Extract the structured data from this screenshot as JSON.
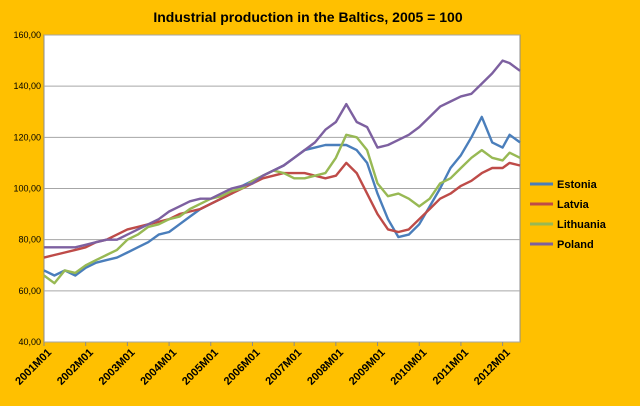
{
  "chart_data": {
    "type": "line",
    "title": "Industrial production in the Baltics, 2005 = 100",
    "ylim": [
      40,
      160
    ],
    "yticks": [
      40,
      60,
      80,
      100,
      120,
      140,
      160
    ],
    "ytick_labels": [
      "40,00",
      "60,00",
      "80,00",
      "100,00",
      "120,00",
      "140,00",
      "160,00"
    ],
    "xticks": [
      "2001M01",
      "2002M01",
      "2003M01",
      "2004M01",
      "2005M01",
      "2006M01",
      "2007M01",
      "2008M01",
      "2009M01",
      "2010M01",
      "2011M01",
      "2012M01"
    ],
    "x_start": "2001M01",
    "x_end": "2012M06",
    "grid": true,
    "legend_position": "right",
    "series": [
      {
        "name": "Estonia",
        "color": "#4A7EBB",
        "points": [
          [
            "2001M01",
            68
          ],
          [
            "2001M04",
            66
          ],
          [
            "2001M07",
            68
          ],
          [
            "2001M10",
            66
          ],
          [
            "2002M01",
            69
          ],
          [
            "2002M04",
            71
          ],
          [
            "2002M07",
            72
          ],
          [
            "2002M10",
            73
          ],
          [
            "2003M01",
            75
          ],
          [
            "2003M04",
            77
          ],
          [
            "2003M07",
            79
          ],
          [
            "2003M10",
            82
          ],
          [
            "2004M01",
            83
          ],
          [
            "2004M04",
            86
          ],
          [
            "2004M07",
            89
          ],
          [
            "2004M10",
            92
          ],
          [
            "2005M01",
            94
          ],
          [
            "2005M04",
            96
          ],
          [
            "2005M07",
            98
          ],
          [
            "2005M10",
            101
          ],
          [
            "2006M01",
            103
          ],
          [
            "2006M04",
            105
          ],
          [
            "2006M07",
            107
          ],
          [
            "2006M10",
            109
          ],
          [
            "2007M01",
            112
          ],
          [
            "2007M04",
            115
          ],
          [
            "2007M07",
            116
          ],
          [
            "2007M10",
            117
          ],
          [
            "2008M01",
            117
          ],
          [
            "2008M04",
            117
          ],
          [
            "2008M07",
            115
          ],
          [
            "2008M10",
            110
          ],
          [
            "2009M01",
            98
          ],
          [
            "2009M04",
            88
          ],
          [
            "2009M07",
            81
          ],
          [
            "2009M10",
            82
          ],
          [
            "2010M01",
            86
          ],
          [
            "2010M04",
            93
          ],
          [
            "2010M07",
            100
          ],
          [
            "2010M10",
            108
          ],
          [
            "2011M01",
            113
          ],
          [
            "2011M04",
            120
          ],
          [
            "2011M07",
            128
          ],
          [
            "2011M10",
            118
          ],
          [
            "2012M01",
            116
          ],
          [
            "2012M03",
            121
          ],
          [
            "2012M06",
            118
          ]
        ]
      },
      {
        "name": "Latvia",
        "color": "#BE4B48",
        "points": [
          [
            "2001M01",
            73
          ],
          [
            "2001M04",
            74
          ],
          [
            "2001M07",
            75
          ],
          [
            "2001M10",
            76
          ],
          [
            "2002M01",
            77
          ],
          [
            "2002M04",
            79
          ],
          [
            "2002M07",
            80
          ],
          [
            "2002M10",
            82
          ],
          [
            "2003M01",
            84
          ],
          [
            "2003M04",
            85
          ],
          [
            "2003M07",
            86
          ],
          [
            "2003M10",
            87
          ],
          [
            "2004M01",
            88
          ],
          [
            "2004M04",
            90
          ],
          [
            "2004M07",
            91
          ],
          [
            "2004M10",
            92
          ],
          [
            "2005M01",
            94
          ],
          [
            "2005M04",
            96
          ],
          [
            "2005M07",
            98
          ],
          [
            "2005M10",
            100
          ],
          [
            "2006M01",
            102
          ],
          [
            "2006M04",
            104
          ],
          [
            "2006M07",
            105
          ],
          [
            "2006M10",
            106
          ],
          [
            "2007M01",
            106
          ],
          [
            "2007M04",
            106
          ],
          [
            "2007M07",
            105
          ],
          [
            "2007M10",
            104
          ],
          [
            "2008M01",
            105
          ],
          [
            "2008M04",
            110
          ],
          [
            "2008M07",
            106
          ],
          [
            "2008M10",
            98
          ],
          [
            "2009M01",
            90
          ],
          [
            "2009M04",
            84
          ],
          [
            "2009M07",
            83
          ],
          [
            "2009M10",
            84
          ],
          [
            "2010M01",
            88
          ],
          [
            "2010M04",
            92
          ],
          [
            "2010M07",
            96
          ],
          [
            "2010M10",
            98
          ],
          [
            "2011M01",
            101
          ],
          [
            "2011M04",
            103
          ],
          [
            "2011M07",
            106
          ],
          [
            "2011M10",
            108
          ],
          [
            "2012M01",
            108
          ],
          [
            "2012M03",
            110
          ],
          [
            "2012M06",
            109
          ]
        ]
      },
      {
        "name": "Lithuania",
        "color": "#98B954",
        "points": [
          [
            "2001M01",
            66
          ],
          [
            "2001M04",
            63
          ],
          [
            "2001M07",
            68
          ],
          [
            "2001M10",
            67
          ],
          [
            "2002M01",
            70
          ],
          [
            "2002M04",
            72
          ],
          [
            "2002M07",
            74
          ],
          [
            "2002M10",
            76
          ],
          [
            "2003M01",
            80
          ],
          [
            "2003M04",
            82
          ],
          [
            "2003M07",
            85
          ],
          [
            "2003M10",
            86
          ],
          [
            "2004M01",
            88
          ],
          [
            "2004M04",
            89
          ],
          [
            "2004M07",
            92
          ],
          [
            "2004M10",
            94
          ],
          [
            "2005M01",
            96
          ],
          [
            "2005M04",
            97
          ],
          [
            "2005M07",
            99
          ],
          [
            "2005M10",
            100
          ],
          [
            "2006M01",
            103
          ],
          [
            "2006M04",
            105
          ],
          [
            "2006M07",
            107
          ],
          [
            "2006M10",
            106
          ],
          [
            "2007M01",
            104
          ],
          [
            "2007M04",
            104
          ],
          [
            "2007M07",
            105
          ],
          [
            "2007M10",
            106
          ],
          [
            "2008M01",
            112
          ],
          [
            "2008M04",
            121
          ],
          [
            "2008M07",
            120
          ],
          [
            "2008M10",
            115
          ],
          [
            "2009M01",
            102
          ],
          [
            "2009M04",
            97
          ],
          [
            "2009M07",
            98
          ],
          [
            "2009M10",
            96
          ],
          [
            "2010M01",
            93
          ],
          [
            "2010M04",
            96
          ],
          [
            "2010M07",
            102
          ],
          [
            "2010M10",
            104
          ],
          [
            "2011M01",
            108
          ],
          [
            "2011M04",
            112
          ],
          [
            "2011M07",
            115
          ],
          [
            "2011M10",
            112
          ],
          [
            "2012M01",
            111
          ],
          [
            "2012M03",
            114
          ],
          [
            "2012M06",
            112
          ]
        ]
      },
      {
        "name": "Poland",
        "color": "#7D60A0",
        "points": [
          [
            "2001M01",
            77
          ],
          [
            "2001M04",
            77
          ],
          [
            "2001M07",
            77
          ],
          [
            "2001M10",
            77
          ],
          [
            "2002M01",
            78
          ],
          [
            "2002M04",
            79
          ],
          [
            "2002M07",
            80
          ],
          [
            "2002M10",
            80
          ],
          [
            "2003M01",
            82
          ],
          [
            "2003M04",
            84
          ],
          [
            "2003M07",
            86
          ],
          [
            "2003M10",
            88
          ],
          [
            "2004M01",
            91
          ],
          [
            "2004M04",
            93
          ],
          [
            "2004M07",
            95
          ],
          [
            "2004M10",
            96
          ],
          [
            "2005M01",
            96
          ],
          [
            "2005M04",
            98
          ],
          [
            "2005M07",
            100
          ],
          [
            "2005M10",
            101
          ],
          [
            "2006M01",
            102
          ],
          [
            "2006M04",
            105
          ],
          [
            "2006M07",
            107
          ],
          [
            "2006M10",
            109
          ],
          [
            "2007M01",
            112
          ],
          [
            "2007M04",
            115
          ],
          [
            "2007M07",
            118
          ],
          [
            "2007M10",
            123
          ],
          [
            "2008M01",
            126
          ],
          [
            "2008M04",
            133
          ],
          [
            "2008M07",
            126
          ],
          [
            "2008M10",
            124
          ],
          [
            "2009M01",
            116
          ],
          [
            "2009M04",
            117
          ],
          [
            "2009M07",
            119
          ],
          [
            "2009M10",
            121
          ],
          [
            "2010M01",
            124
          ],
          [
            "2010M04",
            128
          ],
          [
            "2010M07",
            132
          ],
          [
            "2010M10",
            134
          ],
          [
            "2011M01",
            136
          ],
          [
            "2011M04",
            137
          ],
          [
            "2011M07",
            141
          ],
          [
            "2011M10",
            145
          ],
          [
            "2012M01",
            150
          ],
          [
            "2012M03",
            149
          ],
          [
            "2012M06",
            146
          ]
        ]
      }
    ]
  }
}
